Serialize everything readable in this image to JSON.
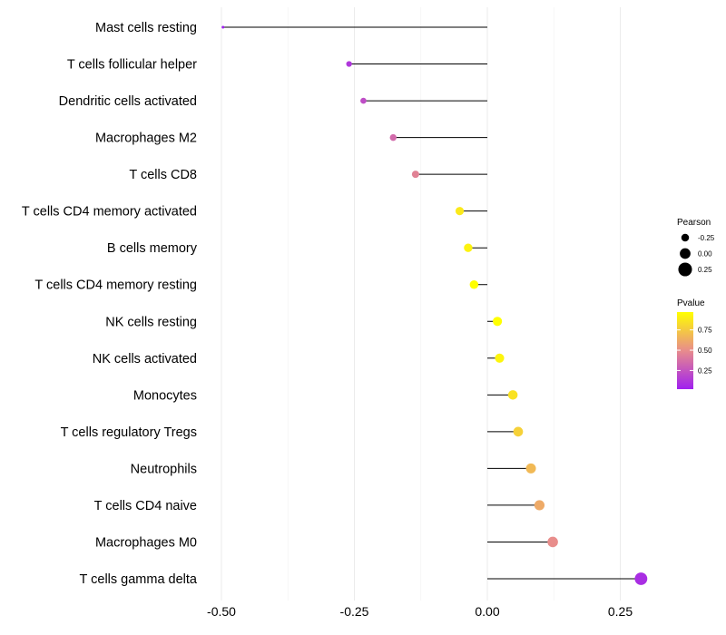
{
  "chart_data": {
    "type": "lollipop",
    "title": "",
    "xlabel": "",
    "ylabel": "",
    "xlim": [
      -0.52,
      0.3
    ],
    "x_ticks": [
      -0.5,
      -0.25,
      0.0,
      0.25
    ],
    "x_tick_labels": [
      "-0.50",
      "-0.25",
      "0.00",
      "0.25"
    ],
    "grid": "vertical",
    "categories": [
      "Mast cells resting",
      "T cells follicular helper",
      "Dendritic cells activated",
      "Macrophages M2",
      "T cells CD8",
      "T cells CD4 memory activated",
      "B cells memory",
      "T cells CD4 memory resting",
      "NK cells resting",
      "NK cells activated",
      "Monocytes",
      "T cells regulatory  Tregs ",
      "Neutrophils",
      "T cells CD4 naive",
      "Macrophages M0",
      "T cells gamma delta"
    ],
    "pearson": [
      -0.497,
      -0.26,
      -0.233,
      -0.177,
      -0.135,
      -0.052,
      -0.036,
      -0.025,
      0.019,
      0.023,
      0.048,
      0.058,
      0.082,
      0.098,
      0.123,
      0.289
    ],
    "pvalue": [
      0.02,
      0.12,
      0.22,
      0.35,
      0.45,
      0.88,
      0.92,
      0.97,
      0.97,
      0.93,
      0.85,
      0.78,
      0.68,
      0.62,
      0.5,
      0.08
    ],
    "legend": {
      "placement": "right",
      "size_title": "Pearson",
      "size_values": [
        -0.25,
        0.0,
        0.25
      ],
      "size_labels": [
        "-0.25",
        "0.00",
        "0.25"
      ],
      "color_title": "Pvalue",
      "color_ticks": [
        0.25,
        0.5,
        0.75
      ],
      "color_tick_labels": [
        "0.25",
        "0.50",
        "0.75"
      ],
      "color_range": [
        0.02,
        0.97
      ],
      "color_low": "#a020f0",
      "color_high": "#ffff00"
    }
  }
}
